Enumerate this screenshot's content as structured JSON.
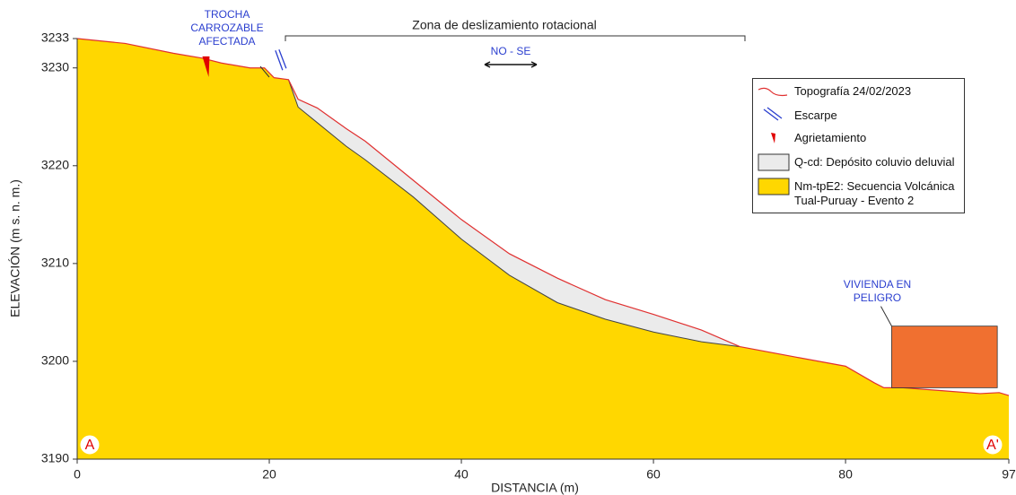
{
  "chart_data": {
    "type": "cross-section",
    "xlabel": "DISTANCIA (m)",
    "ylabel": "ELEVACIÓN (m s. n. m.)",
    "xlim": [
      0,
      97
    ],
    "ylim": [
      3190,
      3233
    ],
    "xticks": [
      0,
      20,
      40,
      60,
      80,
      97
    ],
    "yticks": [
      3190,
      3200,
      3210,
      3220,
      3230,
      3233
    ],
    "x": [
      0,
      5,
      10,
      13,
      15,
      18,
      19.5,
      20.5,
      22,
      23,
      25,
      28,
      30,
      35,
      40,
      45,
      50,
      55,
      60,
      65,
      69,
      75,
      80,
      83,
      84,
      86,
      90,
      94,
      96,
      97
    ],
    "series": [
      {
        "name": "Topografía 24/02/2023",
        "color": "#e03030",
        "values": [
          3233,
          3232.5,
          3231.5,
          3231,
          3230.5,
          3230,
          3230,
          3229,
          3228.8,
          3226.8,
          3225.9,
          3223.8,
          3222.5,
          3218.5,
          3214.5,
          3211,
          3208.5,
          3206.3,
          3204.8,
          3203.2,
          3201.5,
          3200.4,
          3199.5,
          3197.8,
          3197.3,
          3197.3,
          3197,
          3196.7,
          3196.8,
          3196.5
        ]
      },
      {
        "name": "Q-cd: Depósito coluvio deluvial",
        "color": "#ebebeb",
        "values": [
          null,
          null,
          null,
          null,
          null,
          null,
          null,
          null,
          3228.8,
          3226.8,
          3225.9,
          3223.8,
          3222.5,
          3218.5,
          3214.5,
          3211,
          3208.5,
          3206.3,
          3204.8,
          3203.2,
          3201.5,
          null,
          null,
          null,
          null,
          null,
          null,
          null,
          null,
          null
        ]
      },
      {
        "name": "Nm-tpE2: Secuencia Volcánica Tual-Puruay - Evento 2",
        "color": "#ffd700",
        "values": [
          3233,
          3232.5,
          3231.5,
          3231,
          3230.5,
          3230,
          3230,
          3229,
          3228.8,
          3226,
          3224.4,
          3222,
          3220.6,
          3216.8,
          3212.5,
          3208.8,
          3206,
          3204.3,
          3203,
          3202,
          3201.5,
          3200.4,
          3199.5,
          3197.8,
          3197.3,
          3197.3,
          3197,
          3196.7,
          3196.8,
          3196.5
        ]
      }
    ],
    "markers": [
      {
        "name": "Escarpe",
        "color": "#2b3fcf",
        "x": 21.2,
        "y": 3230.5
      },
      {
        "name": "Agrietamiento",
        "color": "#e00000",
        "x": 13.5,
        "y": 3230.9
      }
    ],
    "house": {
      "label": [
        "VIVIENDA EN",
        "PELIGRO"
      ],
      "color": "#f07030",
      "x": [
        84.8,
        95.8
      ],
      "y": [
        3197.3,
        3203.6
      ]
    },
    "road_label": [
      "TROCHA",
      "CARROZABLE",
      "AFECTADA"
    ],
    "zone_label": "Zona de deslizamiento rotacional",
    "direction_label": "NO - SE",
    "section_start": "A",
    "section_end": "A'"
  }
}
